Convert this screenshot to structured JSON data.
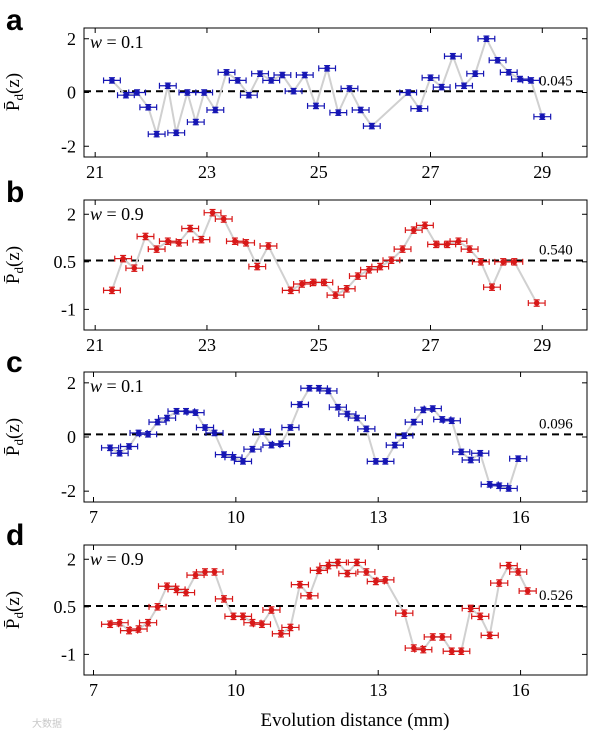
{
  "figure": {
    "xlabel": "Evolution distance (mm)",
    "ylabel_main": "P̄",
    "ylabel_sub": "d",
    "ylabel_tail": "(z)",
    "watermark": "大数据"
  },
  "chart_data": [
    {
      "type": "scatter",
      "panel": "a",
      "w_label": "w",
      "w_value": "= 0.1",
      "mean_label": "0.045",
      "mean": 0.045,
      "marker_color": "#1616b4",
      "line_color": "#d0d0d0",
      "xlim": [
        20.8,
        29.8
      ],
      "ylim": [
        -2.4,
        2.4
      ],
      "xticks": [
        21,
        23,
        25,
        27,
        29
      ],
      "yticks": [
        2,
        0,
        -2
      ],
      "ytick_labels": [
        "2",
        "0",
        "-2"
      ],
      "x_err": 0.15,
      "y_err": 0.1,
      "points": [
        [
          21.3,
          0.45
        ],
        [
          21.55,
          -0.1
        ],
        [
          21.75,
          0.0
        ],
        [
          21.95,
          -0.55
        ],
        [
          22.1,
          -1.55
        ],
        [
          22.3,
          0.25
        ],
        [
          22.45,
          -1.5
        ],
        [
          22.65,
          0.0
        ],
        [
          22.8,
          -1.1
        ],
        [
          22.95,
          0.0
        ],
        [
          23.15,
          -0.65
        ],
        [
          23.35,
          0.75
        ],
        [
          23.55,
          0.45
        ],
        [
          23.75,
          -0.1
        ],
        [
          23.95,
          0.7
        ],
        [
          24.15,
          0.45
        ],
        [
          24.35,
          0.65
        ],
        [
          24.55,
          0.05
        ],
        [
          24.75,
          0.65
        ],
        [
          24.95,
          -0.5
        ],
        [
          25.15,
          0.9
        ],
        [
          25.35,
          -0.75
        ],
        [
          25.55,
          0.15
        ],
        [
          25.75,
          -0.65
        ],
        [
          25.95,
          -1.25
        ],
        [
          26.6,
          0.0
        ],
        [
          26.8,
          -0.6
        ],
        [
          27.0,
          0.55
        ],
        [
          27.2,
          0.2
        ],
        [
          27.4,
          1.35
        ],
        [
          27.6,
          0.25
        ],
        [
          27.8,
          0.7
        ],
        [
          28.0,
          2.0
        ],
        [
          28.2,
          1.2
        ],
        [
          28.4,
          0.75
        ],
        [
          28.6,
          0.5
        ],
        [
          28.8,
          0.45
        ],
        [
          29.0,
          -0.9
        ]
      ]
    },
    {
      "type": "scatter",
      "panel": "b",
      "w_label": "w",
      "w_value": "= 0.9",
      "mean_label": "0.540",
      "mean": 0.54,
      "marker_color": "#d81818",
      "line_color": "#d0d0d0",
      "xlim": [
        20.8,
        29.8
      ],
      "ylim": [
        -1.65,
        2.45
      ],
      "xticks": [
        21,
        23,
        25,
        27,
        29
      ],
      "yticks": [
        2,
        0.5,
        -1
      ],
      "ytick_labels": [
        "2",
        "0.5",
        "-1"
      ],
      "x_err": 0.15,
      "y_err": 0.1,
      "points": [
        [
          21.3,
          -0.4
        ],
        [
          21.5,
          0.6
        ],
        [
          21.7,
          0.3
        ],
        [
          21.9,
          1.3
        ],
        [
          22.1,
          0.9
        ],
        [
          22.3,
          1.15
        ],
        [
          22.5,
          1.1
        ],
        [
          22.7,
          1.55
        ],
        [
          22.9,
          1.2
        ],
        [
          23.1,
          2.05
        ],
        [
          23.3,
          1.85
        ],
        [
          23.5,
          1.15
        ],
        [
          23.7,
          1.1
        ],
        [
          23.9,
          0.35
        ],
        [
          24.1,
          1.0
        ],
        [
          24.5,
          -0.4
        ],
        [
          24.7,
          -0.2
        ],
        [
          24.9,
          -0.15
        ],
        [
          25.1,
          -0.15
        ],
        [
          25.3,
          -0.55
        ],
        [
          25.5,
          -0.35
        ],
        [
          25.7,
          0.05
        ],
        [
          25.9,
          0.25
        ],
        [
          26.1,
          0.35
        ],
        [
          26.3,
          0.55
        ],
        [
          26.5,
          0.9
        ],
        [
          26.7,
          1.5
        ],
        [
          26.9,
          1.65
        ],
        [
          27.1,
          1.05
        ],
        [
          27.3,
          1.05
        ],
        [
          27.5,
          1.15
        ],
        [
          27.7,
          0.9
        ],
        [
          27.9,
          0.5
        ],
        [
          28.1,
          -0.3
        ],
        [
          28.3,
          0.5
        ],
        [
          28.5,
          0.5
        ],
        [
          28.9,
          -0.8
        ]
      ]
    },
    {
      "type": "scatter",
      "panel": "c",
      "w_label": "w",
      "w_value": "= 0.1",
      "mean_label": "0.096",
      "mean": 0.096,
      "marker_color": "#1616b4",
      "line_color": "#d0d0d0",
      "xlim": [
        6.8,
        17.4
      ],
      "ylim": [
        -2.4,
        2.4
      ],
      "xticks": [
        7,
        10,
        13,
        16
      ],
      "yticks": [
        2,
        0,
        -2
      ],
      "ytick_labels": [
        "2",
        "0",
        "-2"
      ],
      "x_err": 0.18,
      "y_err": 0.1,
      "points": [
        [
          7.35,
          -0.4
        ],
        [
          7.55,
          -0.6
        ],
        [
          7.75,
          -0.35
        ],
        [
          7.95,
          0.15
        ],
        [
          8.15,
          0.1
        ],
        [
          8.35,
          0.55
        ],
        [
          8.55,
          0.7
        ],
        [
          8.75,
          0.95
        ],
        [
          8.95,
          0.95
        ],
        [
          9.15,
          0.9
        ],
        [
          9.35,
          0.35
        ],
        [
          9.55,
          0.15
        ],
        [
          9.75,
          -0.65
        ],
        [
          9.95,
          -0.75
        ],
        [
          10.15,
          -0.9
        ],
        [
          10.35,
          -0.45
        ],
        [
          10.55,
          0.2
        ],
        [
          10.75,
          -0.3
        ],
        [
          10.95,
          -0.25
        ],
        [
          11.15,
          0.35
        ],
        [
          11.35,
          1.2
        ],
        [
          11.55,
          1.8
        ],
        [
          11.75,
          1.8
        ],
        [
          11.95,
          1.7
        ],
        [
          12.15,
          1.1
        ],
        [
          12.35,
          0.85
        ],
        [
          12.55,
          0.7
        ],
        [
          12.75,
          0.3
        ],
        [
          12.95,
          -0.9
        ],
        [
          13.15,
          -0.9
        ],
        [
          13.35,
          -0.3
        ],
        [
          13.55,
          0.05
        ],
        [
          13.75,
          0.55
        ],
        [
          13.95,
          1.0
        ],
        [
          14.15,
          1.05
        ],
        [
          14.35,
          0.65
        ],
        [
          14.55,
          0.6
        ],
        [
          14.75,
          -0.55
        ],
        [
          14.95,
          -0.85
        ],
        [
          15.15,
          -0.6
        ],
        [
          15.35,
          -1.75
        ],
        [
          15.55,
          -1.8
        ],
        [
          15.75,
          -1.9
        ],
        [
          15.95,
          -0.8
        ]
      ]
    },
    {
      "type": "scatter",
      "panel": "d",
      "w_label": "w",
      "w_value": "= 0.9",
      "mean_label": "0.526",
      "mean": 0.526,
      "marker_color": "#d81818",
      "line_color": "#d0d0d0",
      "xlim": [
        6.8,
        17.4
      ],
      "ylim": [
        -1.65,
        2.45
      ],
      "xticks": [
        7,
        10,
        13,
        16
      ],
      "yticks": [
        2,
        0.5,
        -1
      ],
      "ytick_labels": [
        "2",
        "0.5",
        "-1"
      ],
      "x_err": 0.18,
      "y_err": 0.1,
      "points": [
        [
          7.35,
          -0.05
        ],
        [
          7.55,
          0.0
        ],
        [
          7.75,
          -0.25
        ],
        [
          7.95,
          -0.2
        ],
        [
          8.15,
          0.0
        ],
        [
          8.35,
          0.5
        ],
        [
          8.55,
          1.15
        ],
        [
          8.75,
          1.05
        ],
        [
          8.95,
          0.95
        ],
        [
          9.15,
          1.5
        ],
        [
          9.35,
          1.6
        ],
        [
          9.55,
          1.6
        ],
        [
          9.75,
          0.75
        ],
        [
          9.95,
          0.2
        ],
        [
          10.15,
          0.2
        ],
        [
          10.35,
          0.0
        ],
        [
          10.55,
          -0.05
        ],
        [
          10.75,
          0.4
        ],
        [
          10.95,
          -0.35
        ],
        [
          11.15,
          -0.15
        ],
        [
          11.35,
          1.2
        ],
        [
          11.55,
          0.85
        ],
        [
          11.75,
          1.65
        ],
        [
          11.95,
          1.8
        ],
        [
          12.15,
          1.9
        ],
        [
          12.35,
          1.55
        ],
        [
          12.55,
          1.9
        ],
        [
          12.75,
          1.6
        ],
        [
          12.95,
          1.3
        ],
        [
          13.15,
          1.35
        ],
        [
          13.55,
          0.3
        ],
        [
          13.75,
          -0.8
        ],
        [
          13.95,
          -0.85
        ],
        [
          14.15,
          -0.45
        ],
        [
          14.35,
          -0.45
        ],
        [
          14.55,
          -0.9
        ],
        [
          14.75,
          -0.9
        ],
        [
          14.95,
          0.45
        ],
        [
          15.15,
          0.2
        ],
        [
          15.35,
          -0.4
        ],
        [
          15.55,
          1.25
        ],
        [
          15.75,
          1.8
        ],
        [
          15.95,
          1.6
        ],
        [
          16.15,
          1.0
        ]
      ]
    }
  ]
}
